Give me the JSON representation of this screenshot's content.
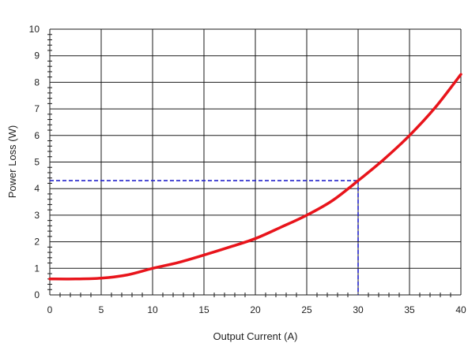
{
  "chart_data": {
    "type": "line",
    "title": "",
    "xlabel": "Output Current (A)",
    "ylabel": "Power Loss (W)",
    "xlim": [
      0,
      40
    ],
    "ylim": [
      0,
      10
    ],
    "x_ticks": [
      0,
      5,
      10,
      15,
      20,
      25,
      30,
      35,
      40
    ],
    "y_ticks": [
      0,
      1,
      2,
      3,
      4,
      5,
      6,
      7,
      8,
      9,
      10
    ],
    "x_tick_labels": [
      "0",
      "5",
      "10",
      "15",
      "20",
      "25",
      "30",
      "35",
      "40"
    ],
    "y_tick_labels": [
      "0",
      "1",
      "2",
      "3",
      "4",
      "5",
      "6",
      "7",
      "8",
      "9",
      "10"
    ],
    "grid": true,
    "legend": "none",
    "series": [
      {
        "color": "#e8141b",
        "x": [
          0,
          2.5,
          5,
          7.5,
          10,
          12.5,
          15,
          17.5,
          20,
          22.5,
          25,
          27.5,
          30,
          32.5,
          35,
          37.5,
          40
        ],
        "y": [
          0.6,
          0.6,
          0.63,
          0.75,
          1.0,
          1.22,
          1.5,
          1.8,
          2.12,
          2.55,
          3.0,
          3.55,
          4.3,
          5.1,
          6.0,
          7.05,
          8.3
        ]
      }
    ],
    "reference_point": {
      "x": 30,
      "y": 4.3,
      "color": "#2222cc",
      "style": "dashed"
    }
  }
}
